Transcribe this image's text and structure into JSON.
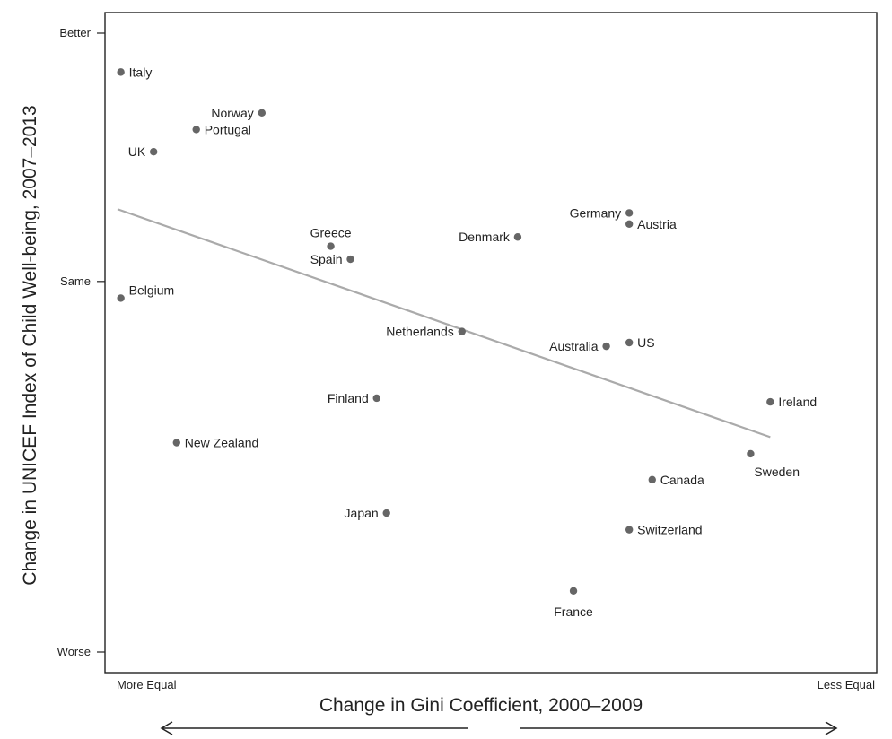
{
  "chart_data": {
    "type": "scatter",
    "title": "",
    "xlabel": "Change in Gini Coefficient, 2000–2009",
    "ylabel": "Change in UNICEF Index of Child Well-being, 2007–2013",
    "xlim": [
      0,
      100
    ],
    "ylim": [
      -100,
      67
    ],
    "x_end_labels": {
      "left": "More Equal",
      "right": "Less Equal"
    },
    "y_ticks": [
      {
        "value": 67,
        "label": "Better"
      },
      {
        "value": 0,
        "label": "Same"
      },
      {
        "value": -100,
        "label": "Worse"
      }
    ],
    "grid": false,
    "legend": "none",
    "colors": {
      "point": "#666666",
      "trend": "#aaaaaa",
      "axis": "#222222"
    },
    "points": [
      {
        "name": "Italy",
        "x": 0.5,
        "y": 56.5,
        "label_pos": "right"
      },
      {
        "name": "Norway",
        "x": 22,
        "y": 45.5,
        "label_pos": "left"
      },
      {
        "name": "Portugal",
        "x": 12,
        "y": 41,
        "label_pos": "right"
      },
      {
        "name": "UK",
        "x": 5.5,
        "y": 35,
        "label_pos": "left"
      },
      {
        "name": "Germany",
        "x": 78,
        "y": 18.5,
        "label_pos": "left"
      },
      {
        "name": "Austria",
        "x": 78,
        "y": 15.5,
        "label_pos": "right"
      },
      {
        "name": "Denmark",
        "x": 61,
        "y": 12,
        "label_pos": "left"
      },
      {
        "name": "Greece",
        "x": 32.5,
        "y": 9.5,
        "label_pos": "above"
      },
      {
        "name": "Spain",
        "x": 35.5,
        "y": 6,
        "label_pos": "left"
      },
      {
        "name": "Belgium",
        "x": 0.5,
        "y": -4.5,
        "label_pos": "right-up"
      },
      {
        "name": "Netherlands",
        "x": 52.5,
        "y": -13.5,
        "label_pos": "left"
      },
      {
        "name": "Australia",
        "x": 74.5,
        "y": -17.5,
        "label_pos": "left"
      },
      {
        "name": "US",
        "x": 78,
        "y": -16.5,
        "label_pos": "right"
      },
      {
        "name": "Finland",
        "x": 39.5,
        "y": -31.5,
        "label_pos": "left"
      },
      {
        "name": "Ireland",
        "x": 99.5,
        "y": -32.5,
        "label_pos": "right"
      },
      {
        "name": "New Zealand",
        "x": 9,
        "y": -43.5,
        "label_pos": "right"
      },
      {
        "name": "Sweden",
        "x": 96.5,
        "y": -46.5,
        "label_pos": "below-right"
      },
      {
        "name": "Canada",
        "x": 81.5,
        "y": -53.5,
        "label_pos": "right"
      },
      {
        "name": "Japan",
        "x": 41,
        "y": -62.5,
        "label_pos": "left"
      },
      {
        "name": "Switzerland",
        "x": 78,
        "y": -67,
        "label_pos": "right"
      },
      {
        "name": "France",
        "x": 69.5,
        "y": -83.5,
        "label_pos": "below"
      }
    ],
    "trend_line": {
      "x": [
        0,
        99.5
      ],
      "y": [
        19.5,
        -42
      ]
    }
  }
}
